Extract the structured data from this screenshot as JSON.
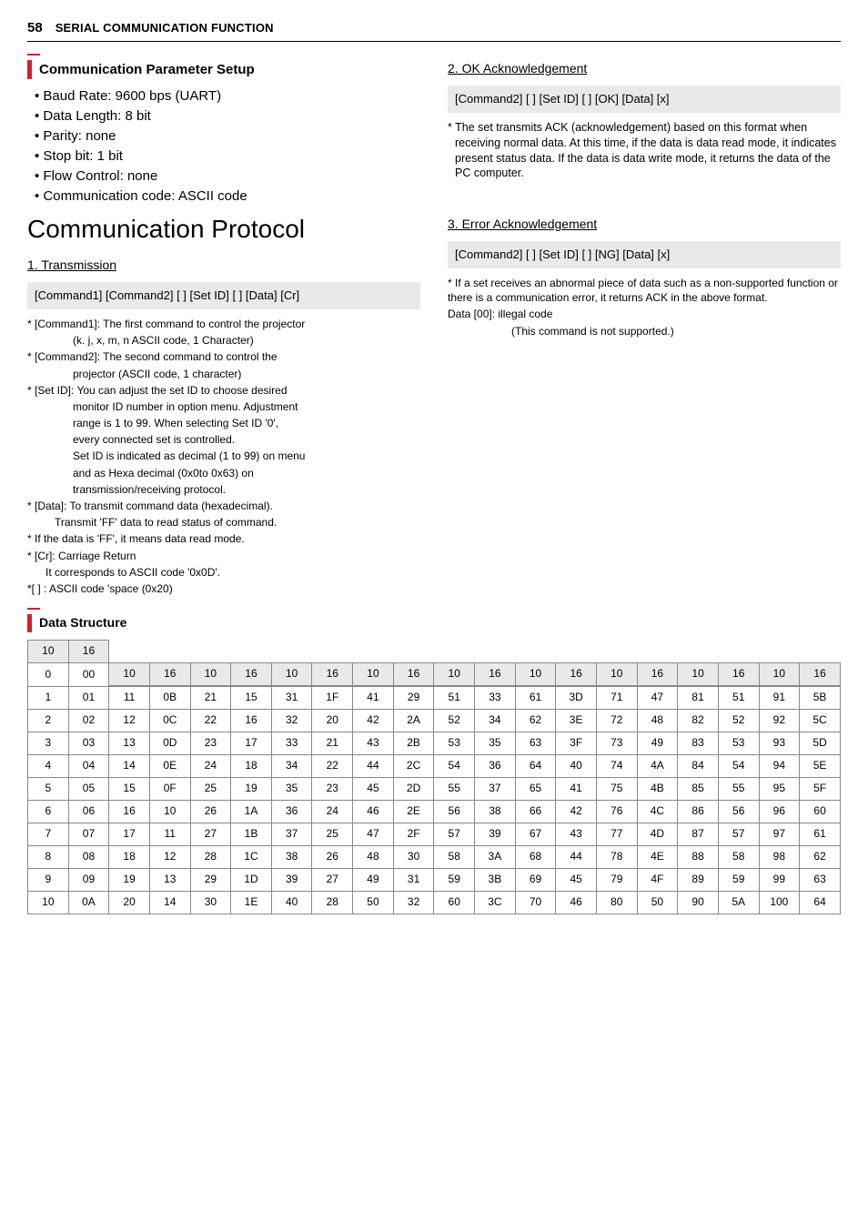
{
  "header": {
    "page_number": "58",
    "title": "SERIAL COMMUNICATION FUNCTION"
  },
  "left": {
    "param_setup_heading": "Communication Parameter Setup",
    "bullets": [
      "Baud Rate: 9600 bps (UART)",
      "Data Length: 8 bit",
      "Parity: none",
      "Stop bit: 1 bit",
      "Flow Control: none",
      "Communication code: ASCII code"
    ],
    "protocol_heading": "Communication Protocol",
    "transmission_heading": "1. Transmission",
    "cmd_box": "[Command1] [Command2] [ ] [Set ID] [ ] [Data] [Cr]",
    "fine": [
      "* [Command1]: The first command to control the projector",
      "(k. j, x, m, n ASCII code, 1 Character)",
      "* [Command2]: The second command to control the",
      "projector (ASCII code, 1 character)",
      "* [Set ID]: You can adjust the set ID to choose desired",
      "monitor ID number in option menu. Adjustment",
      "range is 1 to 99. When selecting Set ID '0',",
      "every connected set is controlled.",
      "Set ID is indicated as decimal (1 to 99) on menu",
      "and as Hexa decimal (0x0to 0x63) on",
      "transmission/receiving protocol.",
      "* [Data]: To transmit command data (hexadecimal).",
      "Transmit 'FF' data to read status of command.",
      "* If the data is 'FF', it means data read mode.",
      "* [Cr]: Carriage Return",
      "It corresponds to ASCII code '0x0D'.",
      "*[ ] : ASCII code 'space (0x20)"
    ]
  },
  "right": {
    "ok_heading": "2. OK Acknowledgement",
    "ok_box": "[Command2] [ ] [Set ID] [ ] [OK] [Data] [x]",
    "ok_note": "* The set transmits ACK (acknowledgement) based on this format when receiving normal data. At this time, if the data is data read mode, it indicates present status data. If the data is data write mode, it returns the data of the PC computer.",
    "err_heading": "3. Error Acknowledgement",
    "err_box": "[Command2] [ ] [Set ID] [ ] [NG] [Data] [x]",
    "err_note1": "* If a set receives an abnormal piece of data such as a non-supported function or there is a communication error, it returns ACK in the above format.",
    "err_note2": "Data [00]: illegal code",
    "err_note3": "(This command is not supported.)"
  },
  "data_structure": {
    "heading": "Data Structure",
    "header_labels": {
      "ten": "10",
      "sixteen": "16"
    },
    "first_row": {
      "dec": "0",
      "hex": "00"
    },
    "rows": [
      [
        "1",
        "01",
        "11",
        "0B",
        "21",
        "15",
        "31",
        "1F",
        "41",
        "29",
        "51",
        "33",
        "61",
        "3D",
        "71",
        "47",
        "81",
        "51",
        "91",
        "5B"
      ],
      [
        "2",
        "02",
        "12",
        "0C",
        "22",
        "16",
        "32",
        "20",
        "42",
        "2A",
        "52",
        "34",
        "62",
        "3E",
        "72",
        "48",
        "82",
        "52",
        "92",
        "5C"
      ],
      [
        "3",
        "03",
        "13",
        "0D",
        "23",
        "17",
        "33",
        "21",
        "43",
        "2B",
        "53",
        "35",
        "63",
        "3F",
        "73",
        "49",
        "83",
        "53",
        "93",
        "5D"
      ],
      [
        "4",
        "04",
        "14",
        "0E",
        "24",
        "18",
        "34",
        "22",
        "44",
        "2C",
        "54",
        "36",
        "64",
        "40",
        "74",
        "4A",
        "84",
        "54",
        "94",
        "5E"
      ],
      [
        "5",
        "05",
        "15",
        "0F",
        "25",
        "19",
        "35",
        "23",
        "45",
        "2D",
        "55",
        "37",
        "65",
        "41",
        "75",
        "4B",
        "85",
        "55",
        "95",
        "5F"
      ],
      [
        "6",
        "06",
        "16",
        "10",
        "26",
        "1A",
        "36",
        "24",
        "46",
        "2E",
        "56",
        "38",
        "66",
        "42",
        "76",
        "4C",
        "86",
        "56",
        "96",
        "60"
      ],
      [
        "7",
        "07",
        "17",
        "11",
        "27",
        "1B",
        "37",
        "25",
        "47",
        "2F",
        "57",
        "39",
        "67",
        "43",
        "77",
        "4D",
        "87",
        "57",
        "97",
        "61"
      ],
      [
        "8",
        "08",
        "18",
        "12",
        "28",
        "1C",
        "38",
        "26",
        "48",
        "30",
        "58",
        "3A",
        "68",
        "44",
        "78",
        "4E",
        "88",
        "58",
        "98",
        "62"
      ],
      [
        "9",
        "09",
        "19",
        "13",
        "29",
        "1D",
        "39",
        "27",
        "49",
        "31",
        "59",
        "3B",
        "69",
        "45",
        "79",
        "4F",
        "89",
        "59",
        "99",
        "63"
      ],
      [
        "10",
        "0A",
        "20",
        "14",
        "30",
        "1E",
        "40",
        "28",
        "50",
        "32",
        "60",
        "3C",
        "70",
        "46",
        "80",
        "50",
        "90",
        "5A",
        "100",
        "64"
      ]
    ],
    "colors": {
      "border": "#888888",
      "header_bg": "#e9e9ea"
    }
  },
  "style": {
    "accent_color": "#d0202e",
    "codebox_bg": "#e9e9ea",
    "text_color": "#000000"
  }
}
